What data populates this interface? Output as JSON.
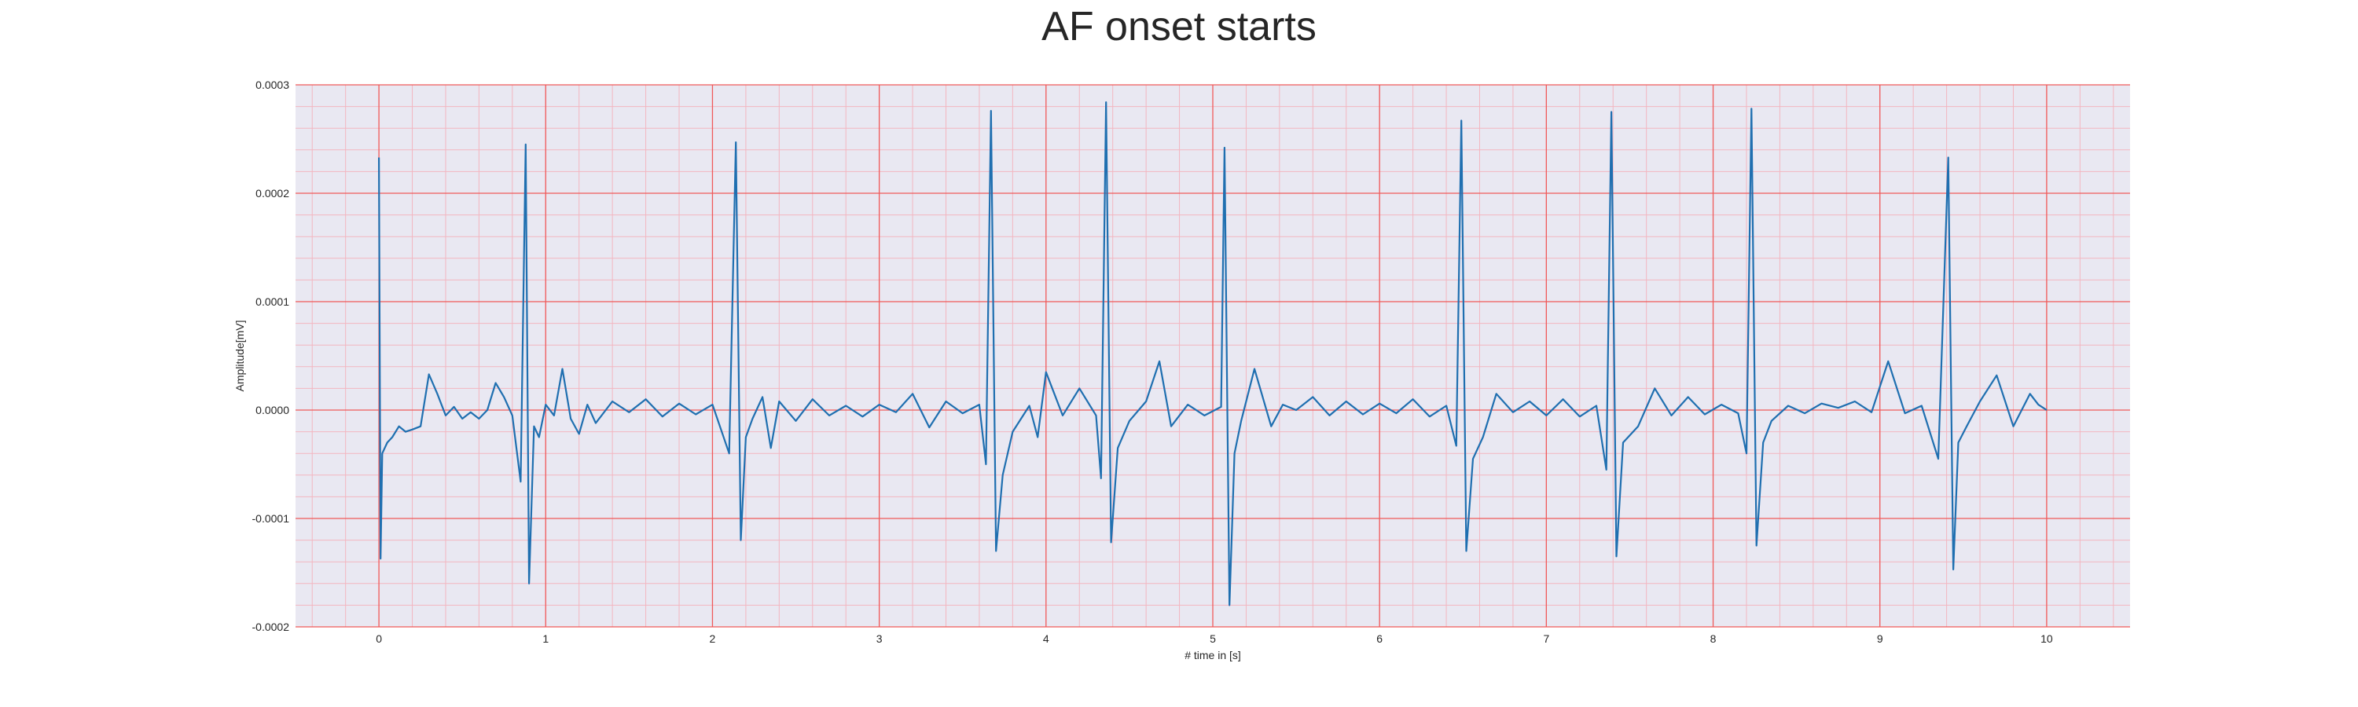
{
  "chart_data": {
    "type": "line",
    "title": "AF onset starts",
    "xlabel": "# time in [s]",
    "ylabel": "Amplitude[mV]",
    "xlim": [
      -0.5,
      10.5
    ],
    "ylim": [
      -0.0002,
      0.0003
    ],
    "x_ticks": [
      0,
      1,
      2,
      3,
      4,
      5,
      6,
      7,
      8,
      9,
      10
    ],
    "x_tick_labels": [
      "0",
      "1",
      "2",
      "3",
      "4",
      "5",
      "6",
      "7",
      "8",
      "9",
      "10"
    ],
    "y_ticks": [
      -0.0002,
      -0.0001,
      0.0,
      0.0001,
      0.0002,
      0.0003
    ],
    "y_tick_labels": [
      "-0.0002",
      "-0.0001",
      "0.0000",
      "0.0001",
      "0.0002",
      "0.0003"
    ],
    "grid": "major and minor, red",
    "colors": {
      "background": "#e9e8f2",
      "major_grid": "#f05a5a",
      "minor_grid": "#f3b6c0",
      "line": "#1f6fb0"
    },
    "series": [
      {
        "x": [
          0.0,
          0.01,
          0.02,
          0.05,
          0.08,
          0.12,
          0.16,
          0.2,
          0.25,
          0.3,
          0.35,
          0.4,
          0.45,
          0.5,
          0.55,
          0.6,
          0.65,
          0.7,
          0.75,
          0.8,
          0.85,
          0.88,
          0.9,
          0.93,
          0.96,
          1.0,
          1.05,
          1.1,
          1.15,
          1.2,
          1.25,
          1.3,
          1.4,
          1.5,
          1.6,
          1.7,
          1.8,
          1.9,
          2.0,
          2.1,
          2.14,
          2.17,
          2.2,
          2.24,
          2.3,
          2.35,
          2.4,
          2.5,
          2.6,
          2.7,
          2.8,
          2.9,
          3.0,
          3.1,
          3.2,
          3.3,
          3.4,
          3.5,
          3.6,
          3.64,
          3.67,
          3.7,
          3.74,
          3.8,
          3.9,
          3.95,
          4.0,
          4.05,
          4.1,
          4.2,
          4.3,
          4.33,
          4.36,
          4.39,
          4.43,
          4.5,
          4.6,
          4.68,
          4.75,
          4.85,
          4.95,
          5.05,
          5.07,
          5.1,
          5.13,
          5.17,
          5.25,
          5.35,
          5.42,
          5.5,
          5.6,
          5.7,
          5.8,
          5.9,
          6.0,
          6.1,
          6.2,
          6.3,
          6.4,
          6.46,
          6.49,
          6.52,
          6.56,
          6.62,
          6.7,
          6.8,
          6.9,
          7.0,
          7.1,
          7.2,
          7.3,
          7.36,
          7.39,
          7.42,
          7.46,
          7.55,
          7.65,
          7.75,
          7.85,
          7.95,
          8.05,
          8.15,
          8.2,
          8.23,
          8.26,
          8.3,
          8.35,
          8.45,
          8.55,
          8.65,
          8.75,
          8.85,
          8.95,
          9.05,
          9.15,
          9.25,
          9.35,
          9.41,
          9.44,
          9.47,
          9.52,
          9.6,
          9.7,
          9.8,
          9.9,
          9.95,
          10.0
        ],
        "y": [
          0.000233,
          -0.000137,
          -4e-05,
          -3e-05,
          -2.5e-05,
          -1.5e-05,
          -2e-05,
          -1.8e-05,
          -1.5e-05,
          3.3e-05,
          1.5e-05,
          -5e-06,
          3e-06,
          -8e-06,
          -2e-06,
          -8e-06,
          0.0,
          2.5e-05,
          1.2e-05,
          -5e-06,
          -6.6e-05,
          0.000245,
          -0.00016,
          -1.5e-05,
          -2.5e-05,
          5e-06,
          -5e-06,
          3.8e-05,
          -8e-06,
          -2.2e-05,
          5e-06,
          -1.2e-05,
          8e-06,
          -2e-06,
          1e-05,
          -6e-06,
          6e-06,
          -4e-06,
          5e-06,
          -4e-05,
          0.000247,
          -0.00012,
          -2.5e-05,
          -8e-06,
          1.2e-05,
          -3.5e-05,
          8e-06,
          -1e-05,
          1e-05,
          -5e-06,
          4e-06,
          -6e-06,
          5e-06,
          -2e-06,
          1.5e-05,
          -1.6e-05,
          8e-06,
          -3e-06,
          5e-06,
          -5e-05,
          0.000276,
          -0.00013,
          -6e-05,
          -2e-05,
          4e-06,
          -2.5e-05,
          3.5e-05,
          1.5e-05,
          -5e-06,
          2e-05,
          -5e-06,
          -6.3e-05,
          0.000284,
          -0.000122,
          -3.5e-05,
          -1e-05,
          8e-06,
          4.5e-05,
          -1.5e-05,
          5e-06,
          -5e-06,
          3e-06,
          0.000242,
          -0.00018,
          -4e-05,
          -1e-05,
          3.8e-05,
          -1.5e-05,
          5e-06,
          0.0,
          1.2e-05,
          -5e-06,
          8e-06,
          -4e-06,
          6e-06,
          -3e-06,
          1e-05,
          -6e-06,
          4e-06,
          -3.3e-05,
          0.000267,
          -0.00013,
          -4.5e-05,
          -2.5e-05,
          1.5e-05,
          -2e-06,
          8e-06,
          -5e-06,
          1e-05,
          -6e-06,
          4e-06,
          -5.5e-05,
          0.000275,
          -0.000135,
          -3e-05,
          -1.5e-05,
          2e-05,
          -5e-06,
          1.2e-05,
          -4e-06,
          5e-06,
          -3e-06,
          -4e-05,
          0.000278,
          -0.000125,
          -3e-05,
          -1e-05,
          4e-06,
          -3e-06,
          6e-06,
          2e-06,
          8e-06,
          -2e-06,
          4.5e-05,
          -3e-06,
          4e-06,
          -4.5e-05,
          0.000233,
          -0.000147,
          -3e-05,
          -1.5e-05,
          8e-06,
          3.2e-05,
          -1.5e-05,
          1.5e-05,
          5e-06,
          0.0
        ]
      }
    ]
  }
}
